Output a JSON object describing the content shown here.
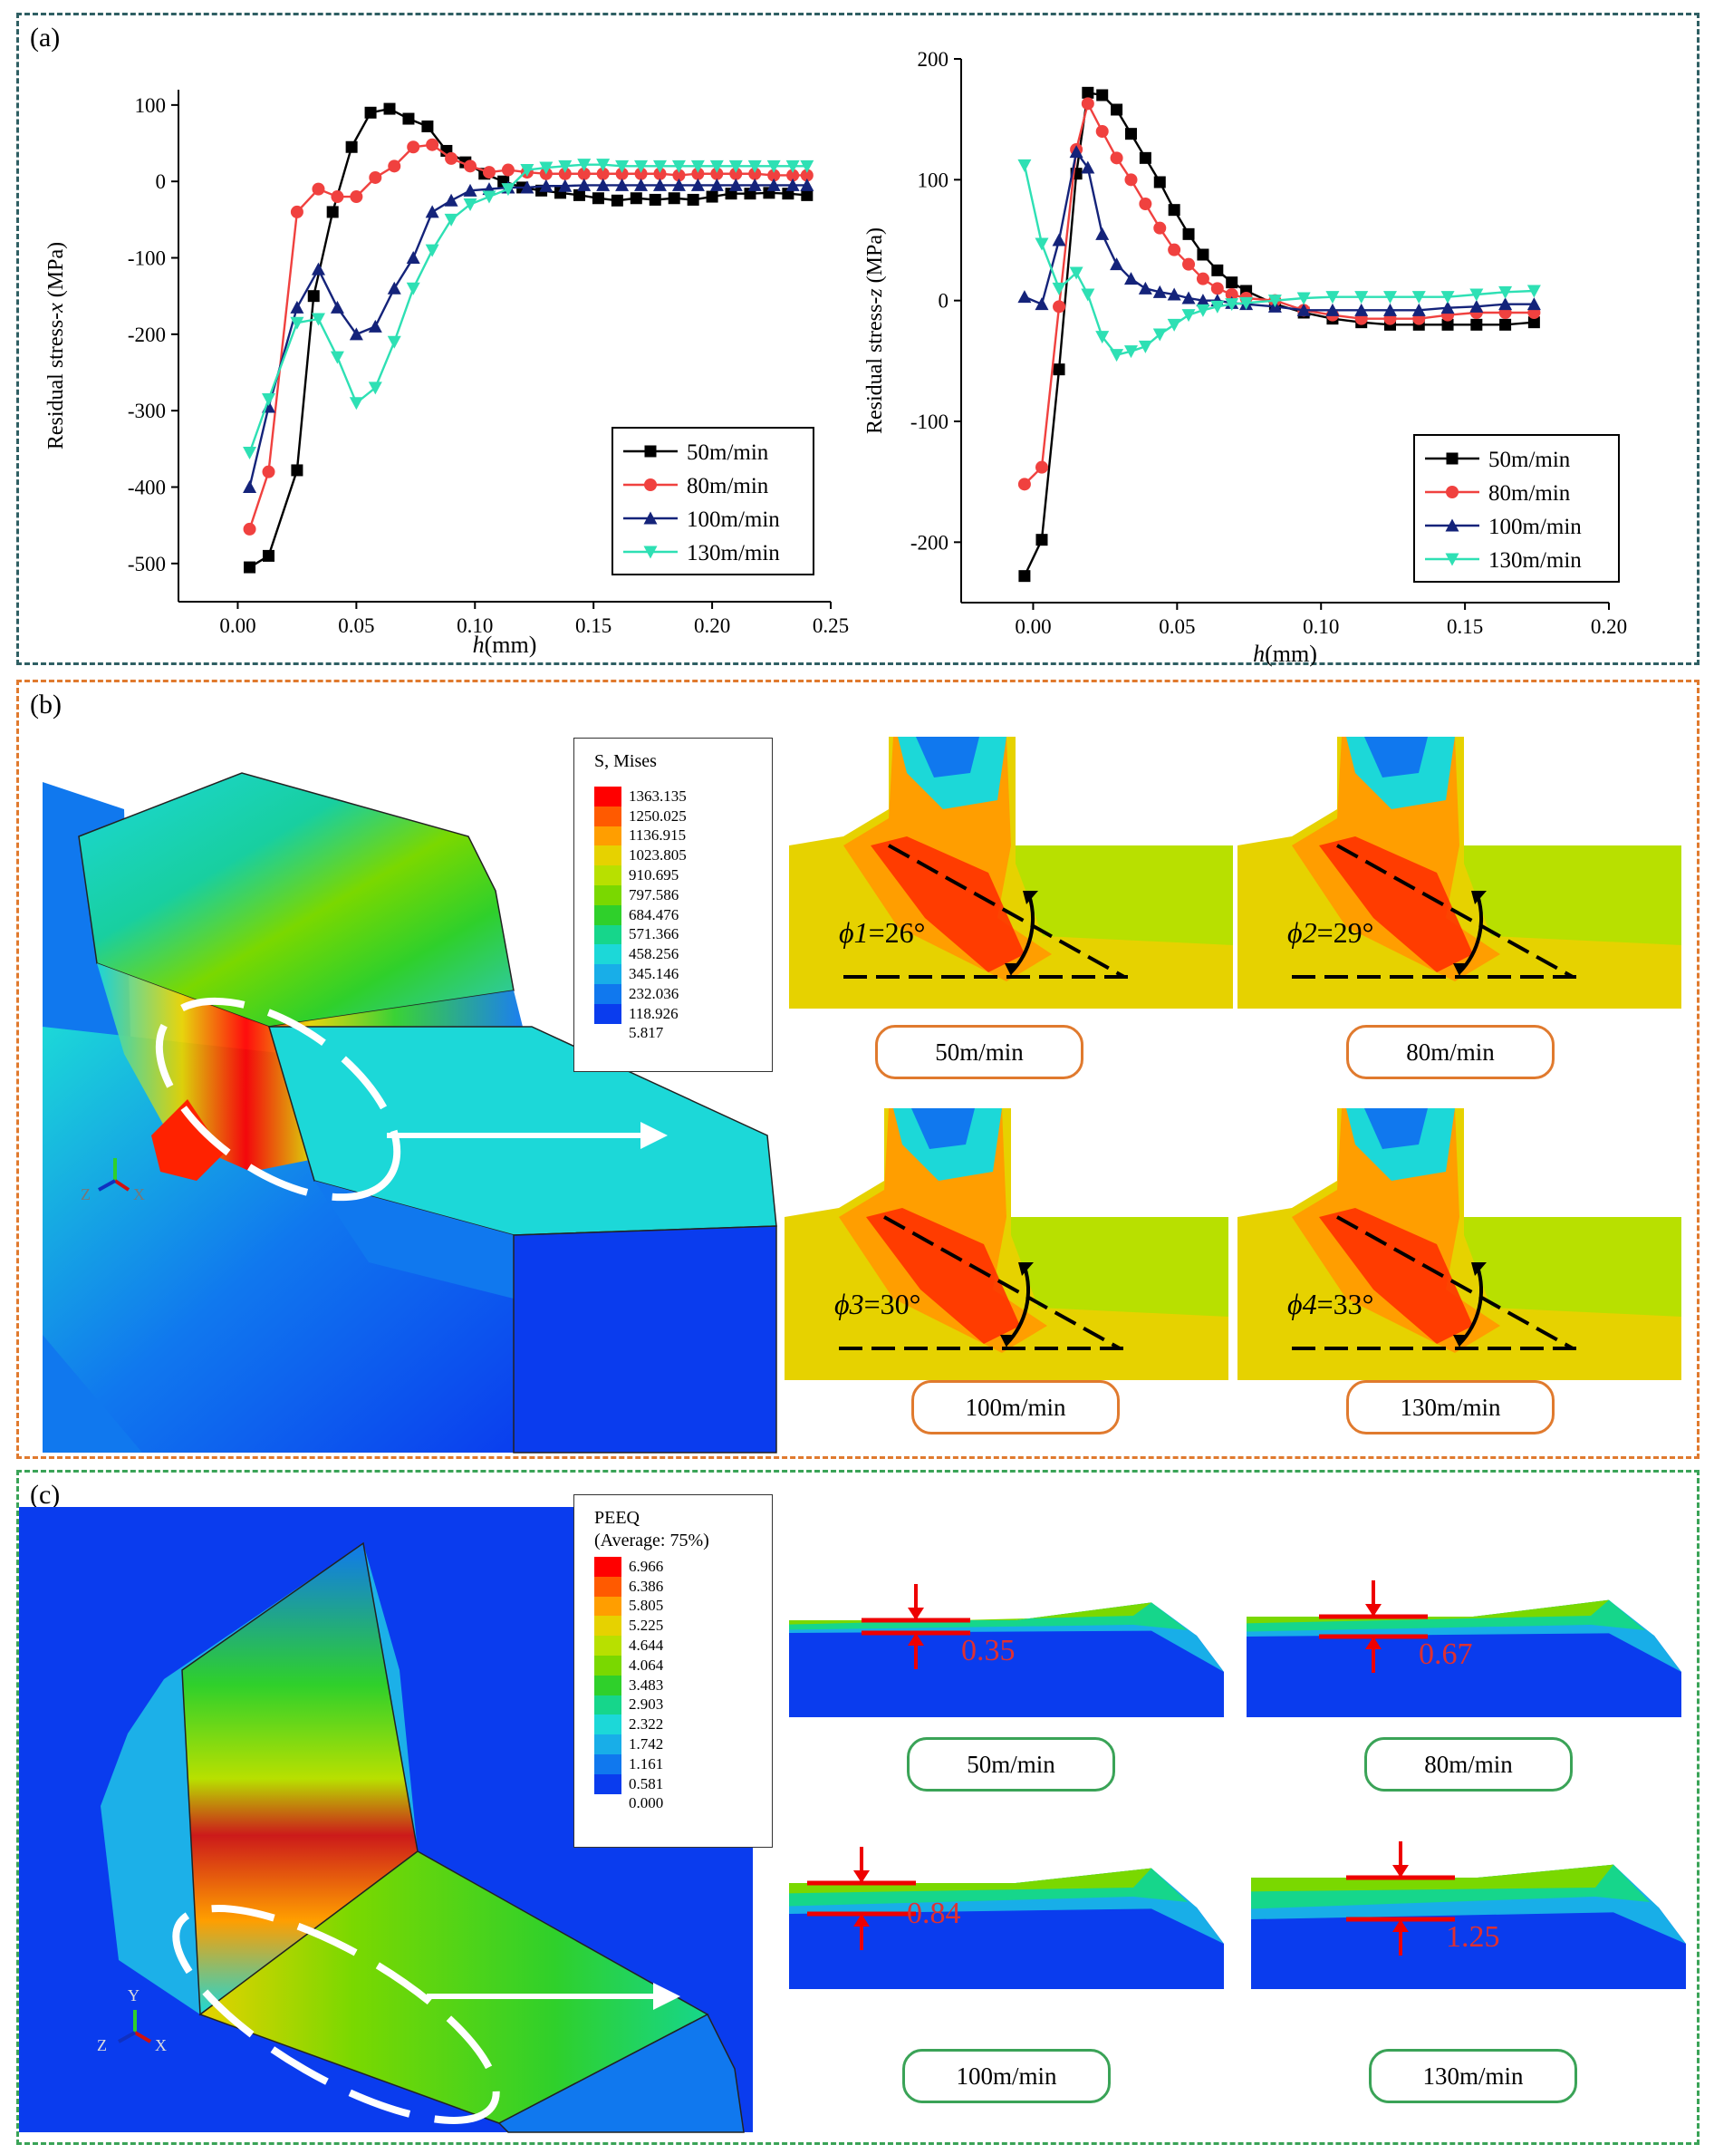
{
  "panel_labels": {
    "a": "(a)",
    "b": "(b)",
    "c": "(c)"
  },
  "series_colors": [
    "#000000",
    "#f0413f",
    "#14237a",
    "#2ee0b4"
  ],
  "chart_data": [
    {
      "type": "line",
      "title": "",
      "xlabel": "h(mm)",
      "ylabel": "Residual stress-x (MPa)",
      "xlim": [
        -0.025,
        0.25
      ],
      "ylim": [
        -550,
        120
      ],
      "xticks": [
        0.0,
        0.05,
        0.1,
        0.15,
        0.2,
        0.25
      ],
      "xtick_labels": [
        "0.00",
        "0.05",
        "0.10",
        "0.15",
        "0.20",
        "0.25"
      ],
      "yticks": [
        -500,
        -400,
        -300,
        -200,
        -100,
        0,
        100
      ],
      "ytick_labels": [
        "-500",
        "-400",
        "-300",
        "-200",
        "-100",
        "0",
        "100"
      ],
      "legend_position": "bottom-right",
      "series": [
        {
          "name": "50m/min",
          "marker": "square",
          "x": [
            0.005,
            0.013,
            0.025,
            0.032,
            0.04,
            0.048,
            0.056,
            0.064,
            0.072,
            0.08,
            0.088,
            0.096,
            0.104,
            0.112,
            0.12,
            0.128,
            0.136,
            0.144,
            0.152,
            0.16,
            0.168,
            0.176,
            0.184,
            0.192,
            0.2,
            0.208,
            0.216,
            0.224,
            0.232,
            0.24
          ],
          "y": [
            -505,
            -490,
            -378,
            -150,
            -40,
            45,
            90,
            95,
            82,
            72,
            40,
            25,
            10,
            0,
            -8,
            -12,
            -15,
            -18,
            -22,
            -25,
            -22,
            -24,
            -22,
            -24,
            -20,
            -16,
            -16,
            -15,
            -16,
            -18
          ]
        },
        {
          "name": "80m/min",
          "marker": "circle",
          "x": [
            0.005,
            0.013,
            0.025,
            0.034,
            0.042,
            0.05,
            0.058,
            0.066,
            0.074,
            0.082,
            0.09,
            0.098,
            0.106,
            0.114,
            0.122,
            0.13,
            0.138,
            0.146,
            0.154,
            0.162,
            0.17,
            0.178,
            0.186,
            0.194,
            0.202,
            0.21,
            0.218,
            0.226,
            0.234,
            0.24
          ],
          "y": [
            -455,
            -380,
            -40,
            -10,
            -20,
            -20,
            5,
            20,
            45,
            48,
            30,
            20,
            12,
            15,
            12,
            10,
            10,
            10,
            10,
            10,
            10,
            10,
            8,
            10,
            10,
            10,
            10,
            8,
            8,
            8
          ]
        },
        {
          "name": "100m/min",
          "marker": "triangle-up",
          "x": [
            0.005,
            0.013,
            0.025,
            0.034,
            0.042,
            0.05,
            0.058,
            0.066,
            0.074,
            0.082,
            0.09,
            0.098,
            0.106,
            0.114,
            0.122,
            0.13,
            0.138,
            0.146,
            0.154,
            0.162,
            0.17,
            0.178,
            0.186,
            0.194,
            0.202,
            0.21,
            0.218,
            0.226,
            0.234,
            0.24
          ],
          "y": [
            -400,
            -295,
            -165,
            -115,
            -165,
            -200,
            -190,
            -140,
            -100,
            -40,
            -25,
            -12,
            -10,
            -8,
            -8,
            -6,
            -6,
            -5,
            -5,
            -5,
            -5,
            -5,
            -5,
            -5,
            -5,
            -5,
            -5,
            -5,
            -5,
            -5
          ]
        },
        {
          "name": "130m/min",
          "marker": "triangle-down",
          "x": [
            0.005,
            0.013,
            0.025,
            0.034,
            0.042,
            0.05,
            0.058,
            0.066,
            0.074,
            0.082,
            0.09,
            0.098,
            0.106,
            0.114,
            0.122,
            0.13,
            0.138,
            0.146,
            0.154,
            0.162,
            0.17,
            0.178,
            0.186,
            0.194,
            0.202,
            0.21,
            0.218,
            0.226,
            0.234,
            0.24
          ],
          "y": [
            -355,
            -285,
            -185,
            -180,
            -230,
            -290,
            -270,
            -210,
            -140,
            -90,
            -50,
            -30,
            -20,
            -10,
            15,
            18,
            20,
            22,
            22,
            20,
            20,
            20,
            20,
            20,
            20,
            20,
            20,
            20,
            20,
            20
          ]
        }
      ]
    },
    {
      "type": "line",
      "title": "",
      "xlabel": "h(mm)",
      "ylabel": "Residual stress-z (MPa)",
      "xlim": [
        -0.025,
        0.2
      ],
      "ylim": [
        -250,
        200
      ],
      "xticks": [
        0.0,
        0.05,
        0.1,
        0.15,
        0.2
      ],
      "xtick_labels": [
        "0.00",
        "0.05",
        "0.10",
        "0.15",
        "0.20"
      ],
      "yticks": [
        -200,
        -100,
        0,
        100,
        200
      ],
      "ytick_labels": [
        "-200",
        "-100",
        "0",
        "100",
        "200"
      ],
      "legend_position": "bottom-right",
      "series": [
        {
          "name": "50m/min",
          "marker": "square",
          "x": [
            -0.003,
            0.003,
            0.009,
            0.015,
            0.019,
            0.024,
            0.029,
            0.034,
            0.039,
            0.044,
            0.049,
            0.054,
            0.059,
            0.064,
            0.069,
            0.074,
            0.084,
            0.094,
            0.104,
            0.114,
            0.124,
            0.134,
            0.144,
            0.154,
            0.164,
            0.174
          ],
          "y": [
            -228,
            -198,
            -57,
            105,
            172,
            170,
            158,
            138,
            118,
            98,
            75,
            55,
            38,
            25,
            15,
            8,
            -3,
            -10,
            -15,
            -18,
            -20,
            -20,
            -20,
            -20,
            -20,
            -18
          ]
        },
        {
          "name": "80m/min",
          "marker": "circle",
          "x": [
            -0.003,
            0.003,
            0.009,
            0.015,
            0.019,
            0.024,
            0.029,
            0.034,
            0.039,
            0.044,
            0.049,
            0.054,
            0.059,
            0.064,
            0.069,
            0.074,
            0.084,
            0.094,
            0.104,
            0.114,
            0.124,
            0.134,
            0.144,
            0.154,
            0.164,
            0.174
          ],
          "y": [
            -152,
            -138,
            -5,
            125,
            163,
            140,
            118,
            100,
            80,
            60,
            42,
            30,
            18,
            10,
            5,
            2,
            0,
            -8,
            -12,
            -15,
            -15,
            -15,
            -12,
            -10,
            -10,
            -10
          ]
        },
        {
          "name": "100m/min",
          "marker": "triangle-up",
          "x": [
            -0.003,
            0.003,
            0.009,
            0.015,
            0.019,
            0.024,
            0.029,
            0.034,
            0.039,
            0.044,
            0.049,
            0.054,
            0.059,
            0.064,
            0.069,
            0.074,
            0.084,
            0.094,
            0.104,
            0.114,
            0.124,
            0.134,
            0.144,
            0.154,
            0.164,
            0.174
          ],
          "y": [
            3,
            -3,
            50,
            123,
            110,
            55,
            30,
            18,
            10,
            7,
            5,
            2,
            0,
            0,
            -2,
            -3,
            -5,
            -8,
            -8,
            -8,
            -8,
            -8,
            -6,
            -5,
            -3,
            -3
          ]
        },
        {
          "name": "130m/min",
          "marker": "triangle-down",
          "x": [
            -0.003,
            0.003,
            0.009,
            0.015,
            0.019,
            0.024,
            0.029,
            0.034,
            0.039,
            0.044,
            0.049,
            0.054,
            0.059,
            0.064,
            0.069,
            0.074,
            0.084,
            0.094,
            0.104,
            0.114,
            0.124,
            0.134,
            0.144,
            0.154,
            0.164,
            0.174
          ],
          "y": [
            112,
            47,
            10,
            23,
            5,
            -30,
            -45,
            -42,
            -38,
            -28,
            -20,
            -12,
            -8,
            -5,
            -3,
            -2,
            0,
            2,
            3,
            3,
            3,
            3,
            3,
            5,
            7,
            8
          ]
        }
      ]
    }
  ],
  "panel_b": {
    "legend_title": "S, Mises",
    "legend_values": [
      "1363.135",
      "1250.025",
      "1136.915",
      "1023.805",
      "910.695",
      "797.586",
      "684.476",
      "571.366",
      "458.256",
      "345.146",
      "232.036",
      "118.926",
      "5.817"
    ],
    "legend_colors": [
      "#ff0000",
      "#ff5a00",
      "#ff9e00",
      "#e6d200",
      "#b8e000",
      "#7ad800",
      "#2fd02b",
      "#16d68b",
      "#1cd8d8",
      "#18aee8",
      "#1078ee",
      "#0a3cee"
    ],
    "speeds": [
      "50m/min",
      "80m/min",
      "100m/min",
      "130m/min"
    ],
    "angle_symbols": [
      "ϕ1",
      "ϕ2",
      "ϕ3",
      "ϕ4"
    ],
    "angle_values": [
      "=26°",
      "=29°",
      "=30°",
      "=33°"
    ],
    "axis_labels": {
      "z": "Z",
      "x": "X"
    }
  },
  "panel_c": {
    "legend_title": "PEEQ",
    "legend_subtitle": "(Average: 75%)",
    "legend_values": [
      "6.966",
      "6.386",
      "5.805",
      "5.225",
      "4.644",
      "4.064",
      "3.483",
      "2.903",
      "2.322",
      "1.742",
      "1.161",
      "0.581",
      "0.000"
    ],
    "legend_colors": [
      "#ff0000",
      "#ff5a00",
      "#ff9e00",
      "#e6d200",
      "#b8e000",
      "#7ad800",
      "#2fd02b",
      "#16d68b",
      "#1cd8d8",
      "#18aee8",
      "#1078ee",
      "#0a3cee"
    ],
    "speeds": [
      "50m/min",
      "80m/min",
      "100m/min",
      "130m/min"
    ],
    "depths": [
      "0.35",
      "0.67",
      "0.84",
      "1.25"
    ],
    "axis_labels": {
      "y": "Y",
      "z": "Z",
      "x": "X"
    }
  }
}
